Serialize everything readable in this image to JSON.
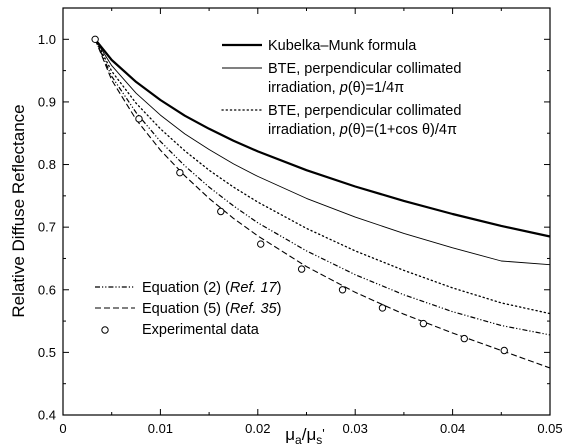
{
  "chart_data": {
    "type": "line",
    "xlabel": "μa/μs'",
    "ylabel": "Relative Diffuse Reflectance",
    "xlim": [
      0,
      0.05
    ],
    "ylim": [
      0.4,
      1.05
    ],
    "x_ticks": [
      "0",
      "0.01",
      "0.02",
      "0.03",
      "0.04",
      "0.05"
    ],
    "x_tick_values": [
      0,
      0.01,
      0.02,
      0.03,
      0.04,
      0.05
    ],
    "y_ticks": [
      "0.4",
      "0.5",
      "0.6",
      "0.7",
      "0.8",
      "0.9",
      "1.0"
    ],
    "y_tick_values": [
      0.4,
      0.5,
      0.6,
      0.7,
      0.8,
      0.9,
      1.0
    ],
    "grid": false,
    "legend_top": {
      "placement": "top-right",
      "entries": [
        {
          "series": 0,
          "lines": [
            [
              {
                "t": "Kubelka–Munk formula"
              }
            ]
          ]
        },
        {
          "series": 1,
          "lines": [
            [
              {
                "t": "BTE, perpendicular collimated"
              }
            ],
            [
              {
                "t": "irradiation, "
              },
              {
                "t": "p",
                "i": true
              },
              {
                "t": "(θ)=1/4π"
              }
            ]
          ]
        },
        {
          "series": 2,
          "lines": [
            [
              {
                "t": "BTE, perpendicular collimated"
              }
            ],
            [
              {
                "t": "irradiation, "
              },
              {
                "t": "p",
                "i": true
              },
              {
                "t": "(θ)=(1+cos θ)/4π"
              }
            ]
          ]
        }
      ]
    },
    "legend_bottom": {
      "placement": "bottom-left",
      "entries": [
        {
          "series": 3,
          "lines": [
            [
              {
                "t": "Equation (2) ("
              },
              {
                "t": "Ref. 17",
                "i": true
              },
              {
                "t": ")"
              }
            ]
          ]
        },
        {
          "series": 4,
          "lines": [
            [
              {
                "t": "Equation (5) ("
              },
              {
                "t": "Ref. 35",
                "i": true
              },
              {
                "t": ")"
              }
            ]
          ]
        },
        {
          "series": 5,
          "lines": [
            [
              {
                "t": "Experimental data"
              }
            ]
          ]
        }
      ]
    },
    "series": [
      {
        "name": "Kubelka–Munk formula",
        "style": "solid-thick",
        "color": "#000000",
        "x": [
          0.0033,
          0.005,
          0.0075,
          0.01,
          0.0125,
          0.015,
          0.0175,
          0.02,
          0.025,
          0.03,
          0.035,
          0.04,
          0.045,
          0.05
        ],
        "y": [
          1.0,
          0.967,
          0.932,
          0.903,
          0.878,
          0.857,
          0.838,
          0.821,
          0.791,
          0.765,
          0.742,
          0.721,
          0.702,
          0.685
        ]
      },
      {
        "name": "BTE, perpendicular collimated irradiation, p(θ)=1/4π",
        "style": "solid-thin",
        "color": "#000000",
        "x": [
          0.0033,
          0.005,
          0.0075,
          0.01,
          0.0125,
          0.015,
          0.0175,
          0.02,
          0.025,
          0.03,
          0.035,
          0.04,
          0.045,
          0.05
        ],
        "y": [
          1.0,
          0.958,
          0.914,
          0.879,
          0.849,
          0.824,
          0.801,
          0.781,
          0.746,
          0.716,
          0.69,
          0.667,
          0.646,
          0.64
        ]
      },
      {
        "name": "BTE, perpendicular collimated irradiation, p(θ)=(1+cos θ)/4π",
        "style": "dotted",
        "color": "#000000",
        "x": [
          0.0033,
          0.005,
          0.0075,
          0.01,
          0.0125,
          0.015,
          0.0175,
          0.02,
          0.025,
          0.03,
          0.035,
          0.04,
          0.045,
          0.05
        ],
        "y": [
          1.0,
          0.949,
          0.898,
          0.857,
          0.822,
          0.791,
          0.764,
          0.74,
          0.698,
          0.662,
          0.631,
          0.603,
          0.579,
          0.562
        ]
      },
      {
        "name": "Equation (2) (Ref. 17)",
        "style": "dashdotdot",
        "color": "#000000",
        "x": [
          0.0033,
          0.005,
          0.0075,
          0.01,
          0.0125,
          0.015,
          0.0175,
          0.02,
          0.025,
          0.03,
          0.035,
          0.04,
          0.045,
          0.05
        ],
        "y": [
          1.0,
          0.941,
          0.883,
          0.837,
          0.798,
          0.764,
          0.734,
          0.707,
          0.662,
          0.624,
          0.592,
          0.565,
          0.543,
          0.528
        ]
      },
      {
        "name": "Equation (5) (Ref. 35)",
        "style": "dashed",
        "color": "#000000",
        "x": [
          0.0033,
          0.005,
          0.0075,
          0.01,
          0.0125,
          0.015,
          0.0175,
          0.02,
          0.025,
          0.03,
          0.035,
          0.04,
          0.045,
          0.05
        ],
        "y": [
          1.0,
          0.935,
          0.872,
          0.823,
          0.782,
          0.746,
          0.714,
          0.686,
          0.637,
          0.596,
          0.561,
          0.531,
          0.503,
          0.475
        ]
      },
      {
        "name": "Experimental data",
        "style": "open-circles",
        "color": "#000000",
        "x": [
          0.0033,
          0.0078,
          0.012,
          0.0162,
          0.0203,
          0.0245,
          0.0287,
          0.0328,
          0.037,
          0.0412,
          0.0453
        ],
        "y": [
          1.0,
          0.873,
          0.787,
          0.725,
          0.673,
          0.633,
          0.6,
          0.571,
          0.546,
          0.522,
          0.503
        ]
      }
    ]
  }
}
